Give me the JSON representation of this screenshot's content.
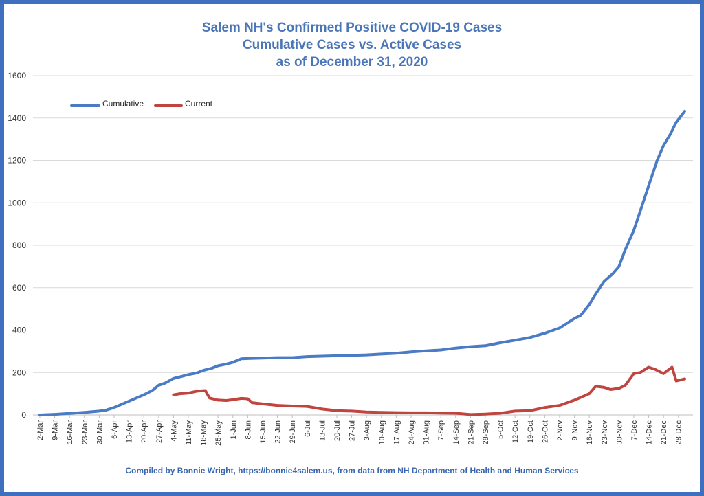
{
  "title_lines": [
    "Salem NH's Confirmed Positive COVID-19 Cases",
    "Cumulative Cases vs. Active Cases",
    "as of December 31, 2020"
  ],
  "footer": "Compiled by Bonnie Wright, https://bonnie4salem.us, from data from NH Department of Health and Human Services",
  "colors": {
    "cumulative": "#4a7bc4",
    "current": "#c0453f",
    "border": "#3f6fbf",
    "title": "#4a76b8"
  },
  "chart_data": {
    "type": "line",
    "title": "Salem NH's Confirmed Positive COVID-19 Cases Cumulative Cases vs. Active Cases as of December 31, 2020",
    "xlabel": "",
    "ylabel": "",
    "ylim": [
      0,
      1600
    ],
    "xlim": [
      "2020-03-02",
      "2020-12-31"
    ],
    "grid": "horizontal",
    "legend": "top-left",
    "y_ticks": [
      "0",
      "200",
      "400",
      "600",
      "800",
      "1000",
      "1200",
      "1400",
      "1600"
    ],
    "x_ticks": [
      {
        "date": "2020-03-02",
        "label": "2-Mar"
      },
      {
        "date": "2020-03-09",
        "label": "9-Mar"
      },
      {
        "date": "2020-03-16",
        "label": "16-Mar"
      },
      {
        "date": "2020-03-23",
        "label": "23-Mar"
      },
      {
        "date": "2020-03-30",
        "label": "30-Mar"
      },
      {
        "date": "2020-04-06",
        "label": "6-Apr"
      },
      {
        "date": "2020-04-13",
        "label": "13-Apr"
      },
      {
        "date": "2020-04-20",
        "label": "20-Apr"
      },
      {
        "date": "2020-04-27",
        "label": "27-Apr"
      },
      {
        "date": "2020-05-04",
        "label": "4-May"
      },
      {
        "date": "2020-05-11",
        "label": "11-May"
      },
      {
        "date": "2020-05-18",
        "label": "18-May"
      },
      {
        "date": "2020-05-25",
        "label": "25-May"
      },
      {
        "date": "2020-06-01",
        "label": "1-Jun"
      },
      {
        "date": "2020-06-08",
        "label": "8-Jun"
      },
      {
        "date": "2020-06-15",
        "label": "15-Jun"
      },
      {
        "date": "2020-06-22",
        "label": "22-Jun"
      },
      {
        "date": "2020-06-29",
        "label": "29-Jun"
      },
      {
        "date": "2020-07-06",
        "label": "6-Jul"
      },
      {
        "date": "2020-07-13",
        "label": "13-Jul"
      },
      {
        "date": "2020-07-20",
        "label": "20-Jul"
      },
      {
        "date": "2020-07-27",
        "label": "27-Jul"
      },
      {
        "date": "2020-08-03",
        "label": "3-Aug"
      },
      {
        "date": "2020-08-10",
        "label": "10-Aug"
      },
      {
        "date": "2020-08-17",
        "label": "17-Aug"
      },
      {
        "date": "2020-08-24",
        "label": "24-Aug"
      },
      {
        "date": "2020-08-31",
        "label": "31-Aug"
      },
      {
        "date": "2020-09-07",
        "label": "7-Sep"
      },
      {
        "date": "2020-09-14",
        "label": "14-Sep"
      },
      {
        "date": "2020-09-21",
        "label": "21-Sep"
      },
      {
        "date": "2020-09-28",
        "label": "28-Sep"
      },
      {
        "date": "2020-10-05",
        "label": "5-Oct"
      },
      {
        "date": "2020-10-12",
        "label": "12-Oct"
      },
      {
        "date": "2020-10-19",
        "label": "19-Oct"
      },
      {
        "date": "2020-10-26",
        "label": "26-Oct"
      },
      {
        "date": "2020-11-02",
        "label": "2-Nov"
      },
      {
        "date": "2020-11-09",
        "label": "9-Nov"
      },
      {
        "date": "2020-11-16",
        "label": "16-Nov"
      },
      {
        "date": "2020-11-23",
        "label": "23-Nov"
      },
      {
        "date": "2020-11-30",
        "label": "30-Nov"
      },
      {
        "date": "2020-12-07",
        "label": "7-Dec"
      },
      {
        "date": "2020-12-14",
        "label": "14-Dec"
      },
      {
        "date": "2020-12-21",
        "label": "21-Dec"
      },
      {
        "date": "2020-12-28",
        "label": "28-Dec"
      }
    ],
    "series": [
      {
        "name": "Cumulative",
        "color": "#4a7bc4",
        "points": [
          [
            "2020-03-02",
            0
          ],
          [
            "2020-03-09",
            3
          ],
          [
            "2020-03-16",
            7
          ],
          [
            "2020-03-23",
            12
          ],
          [
            "2020-03-30",
            18
          ],
          [
            "2020-04-02",
            22
          ],
          [
            "2020-04-06",
            35
          ],
          [
            "2020-04-13",
            65
          ],
          [
            "2020-04-20",
            95
          ],
          [
            "2020-04-24",
            115
          ],
          [
            "2020-04-27",
            140
          ],
          [
            "2020-04-30",
            150
          ],
          [
            "2020-05-04",
            172
          ],
          [
            "2020-05-08",
            182
          ],
          [
            "2020-05-11",
            190
          ],
          [
            "2020-05-15",
            198
          ],
          [
            "2020-05-18",
            210
          ],
          [
            "2020-05-22",
            220
          ],
          [
            "2020-05-25",
            232
          ],
          [
            "2020-05-29",
            240
          ],
          [
            "2020-06-01",
            248
          ],
          [
            "2020-06-05",
            265
          ],
          [
            "2020-06-08",
            266
          ],
          [
            "2020-06-15",
            268
          ],
          [
            "2020-06-22",
            270
          ],
          [
            "2020-06-29",
            270
          ],
          [
            "2020-07-06",
            275
          ],
          [
            "2020-07-13",
            277
          ],
          [
            "2020-07-20",
            279
          ],
          [
            "2020-07-27",
            281
          ],
          [
            "2020-08-03",
            283
          ],
          [
            "2020-08-10",
            287
          ],
          [
            "2020-08-17",
            291
          ],
          [
            "2020-08-24",
            297
          ],
          [
            "2020-08-31",
            302
          ],
          [
            "2020-09-07",
            306
          ],
          [
            "2020-09-14",
            315
          ],
          [
            "2020-09-21",
            322
          ],
          [
            "2020-09-28",
            326
          ],
          [
            "2020-10-05",
            340
          ],
          [
            "2020-10-12",
            352
          ],
          [
            "2020-10-19",
            365
          ],
          [
            "2020-10-26",
            385
          ],
          [
            "2020-11-02",
            410
          ],
          [
            "2020-11-09",
            455
          ],
          [
            "2020-11-12",
            470
          ],
          [
            "2020-11-16",
            520
          ],
          [
            "2020-11-19",
            570
          ],
          [
            "2020-11-23",
            630
          ],
          [
            "2020-11-27",
            665
          ],
          [
            "2020-11-30",
            700
          ],
          [
            "2020-12-03",
            780
          ],
          [
            "2020-12-07",
            870
          ],
          [
            "2020-12-10",
            960
          ],
          [
            "2020-12-14",
            1080
          ],
          [
            "2020-12-18",
            1200
          ],
          [
            "2020-12-21",
            1270
          ],
          [
            "2020-12-24",
            1320
          ],
          [
            "2020-12-27",
            1380
          ],
          [
            "2020-12-31",
            1432
          ]
        ]
      },
      {
        "name": "Current",
        "color": "#c0453f",
        "points": [
          [
            "2020-05-04",
            95
          ],
          [
            "2020-05-07",
            100
          ],
          [
            "2020-05-11",
            103
          ],
          [
            "2020-05-15",
            112
          ],
          [
            "2020-05-19",
            115
          ],
          [
            "2020-05-21",
            80
          ],
          [
            "2020-05-25",
            70
          ],
          [
            "2020-05-29",
            68
          ],
          [
            "2020-06-01",
            72
          ],
          [
            "2020-06-05",
            78
          ],
          [
            "2020-06-08",
            76
          ],
          [
            "2020-06-10",
            58
          ],
          [
            "2020-06-15",
            52
          ],
          [
            "2020-06-22",
            45
          ],
          [
            "2020-06-29",
            42
          ],
          [
            "2020-07-06",
            40
          ],
          [
            "2020-07-13",
            28
          ],
          [
            "2020-07-20",
            20
          ],
          [
            "2020-07-27",
            18
          ],
          [
            "2020-08-03",
            14
          ],
          [
            "2020-08-10",
            12
          ],
          [
            "2020-08-17",
            11
          ],
          [
            "2020-08-24",
            10
          ],
          [
            "2020-08-31",
            10
          ],
          [
            "2020-09-07",
            9
          ],
          [
            "2020-09-14",
            8
          ],
          [
            "2020-09-21",
            2
          ],
          [
            "2020-09-28",
            4
          ],
          [
            "2020-10-05",
            8
          ],
          [
            "2020-10-12",
            18
          ],
          [
            "2020-10-19",
            20
          ],
          [
            "2020-10-26",
            35
          ],
          [
            "2020-11-02",
            45
          ],
          [
            "2020-11-09",
            70
          ],
          [
            "2020-11-16",
            100
          ],
          [
            "2020-11-19",
            135
          ],
          [
            "2020-11-23",
            130
          ],
          [
            "2020-11-26",
            120
          ],
          [
            "2020-11-30",
            125
          ],
          [
            "2020-12-03",
            140
          ],
          [
            "2020-12-07",
            195
          ],
          [
            "2020-12-10",
            200
          ],
          [
            "2020-12-14",
            225
          ],
          [
            "2020-12-17",
            215
          ],
          [
            "2020-12-21",
            195
          ],
          [
            "2020-12-25",
            225
          ],
          [
            "2020-12-27",
            160
          ],
          [
            "2020-12-31",
            170
          ]
        ]
      }
    ]
  }
}
